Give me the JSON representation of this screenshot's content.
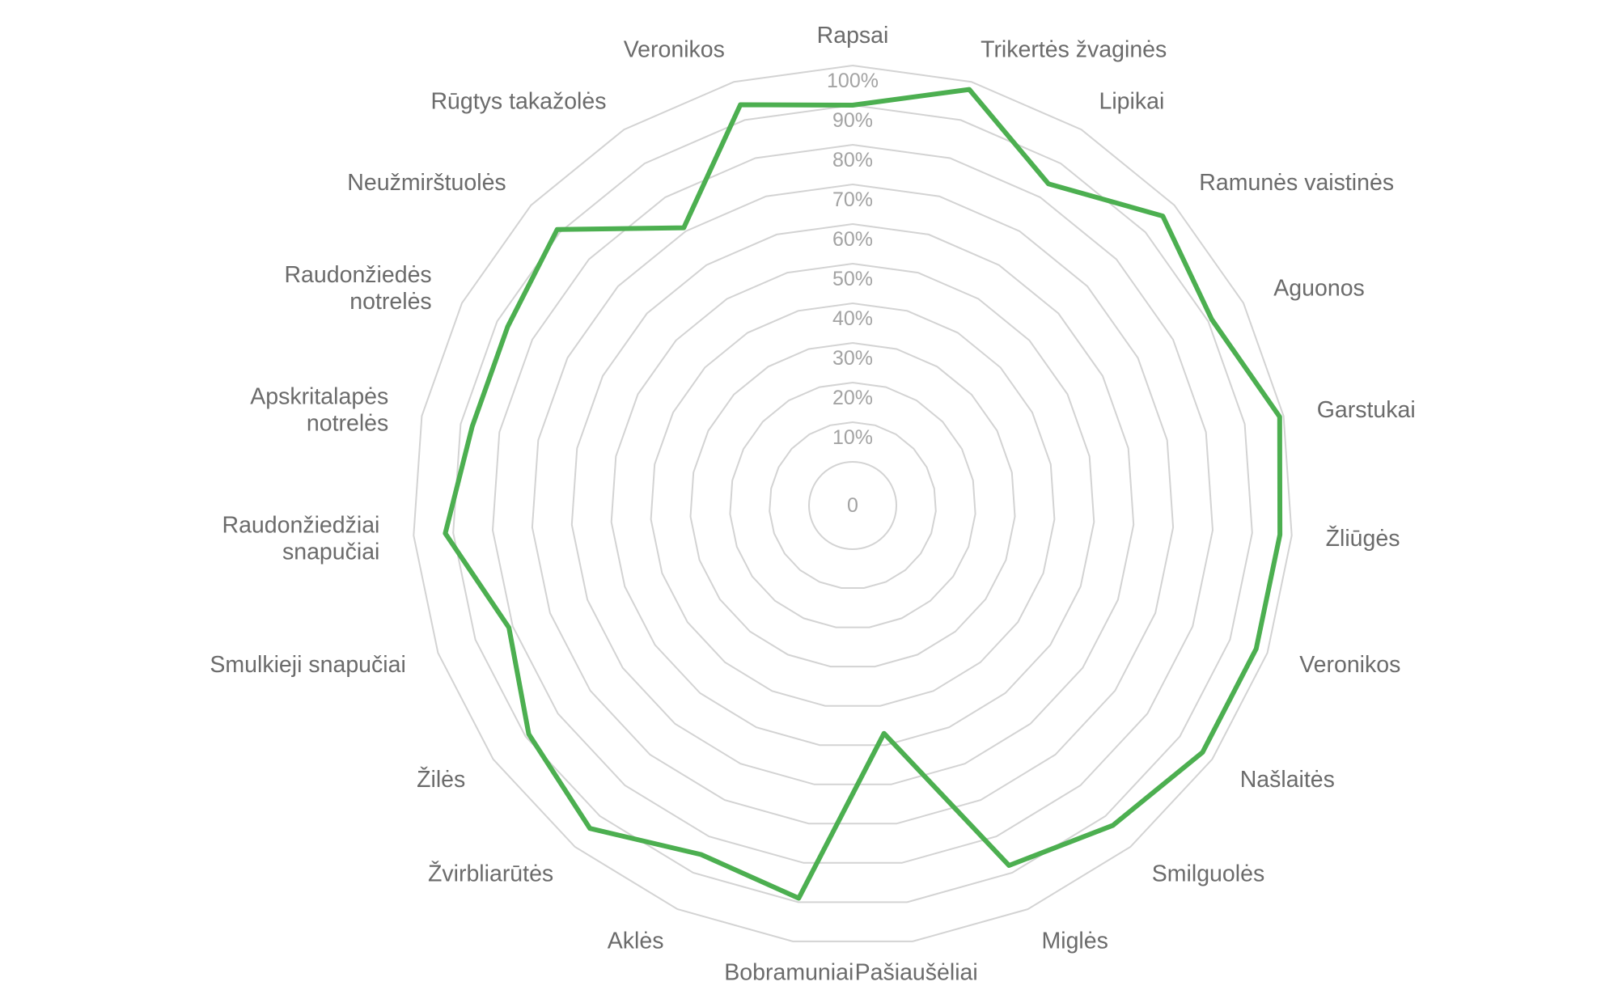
{
  "chart_data": {
    "type": "radar",
    "title": "",
    "categories": [
      "Rapsai",
      "Trikertės žvaginės",
      "Lipikai",
      "Ramunės vaistinės",
      "Aguonos",
      "Garstukai",
      "Žliūgės",
      "Veronikos",
      "Našlaitės",
      "Smilguolės",
      "Miglės",
      "Pašiaušėliai",
      "Bobramuniai",
      "Aklės",
      "Žvirbliarūtės",
      "Žilės",
      "Smulkieji snapučiai",
      "Raudonžiedžiai snapučiai",
      "Apskritalapės notrelės",
      "Raudonžiedės notrelės",
      "Neužmirštuolės",
      "Rūgtys takažolės",
      "Veronikos"
    ],
    "ticks": [
      "0",
      "10%",
      "20%",
      "30%",
      "40%",
      "50%",
      "60%",
      "70%",
      "80%",
      "90%",
      "100%"
    ],
    "rmin": -0.1,
    "rmax": 1.0,
    "grid": true,
    "legend": "none",
    "series": [
      {
        "color": "#4caf50",
        "values": [
          0.9,
          0.98,
          0.84,
          0.96,
          0.91,
          0.99,
          0.97,
          0.97,
          0.97,
          0.93,
          0.88,
          0.47,
          0.89,
          0.85,
          0.94,
          0.89,
          0.81,
          0.92,
          0.87,
          0.87,
          0.91,
          0.71,
          0.94
        ]
      }
    ]
  }
}
